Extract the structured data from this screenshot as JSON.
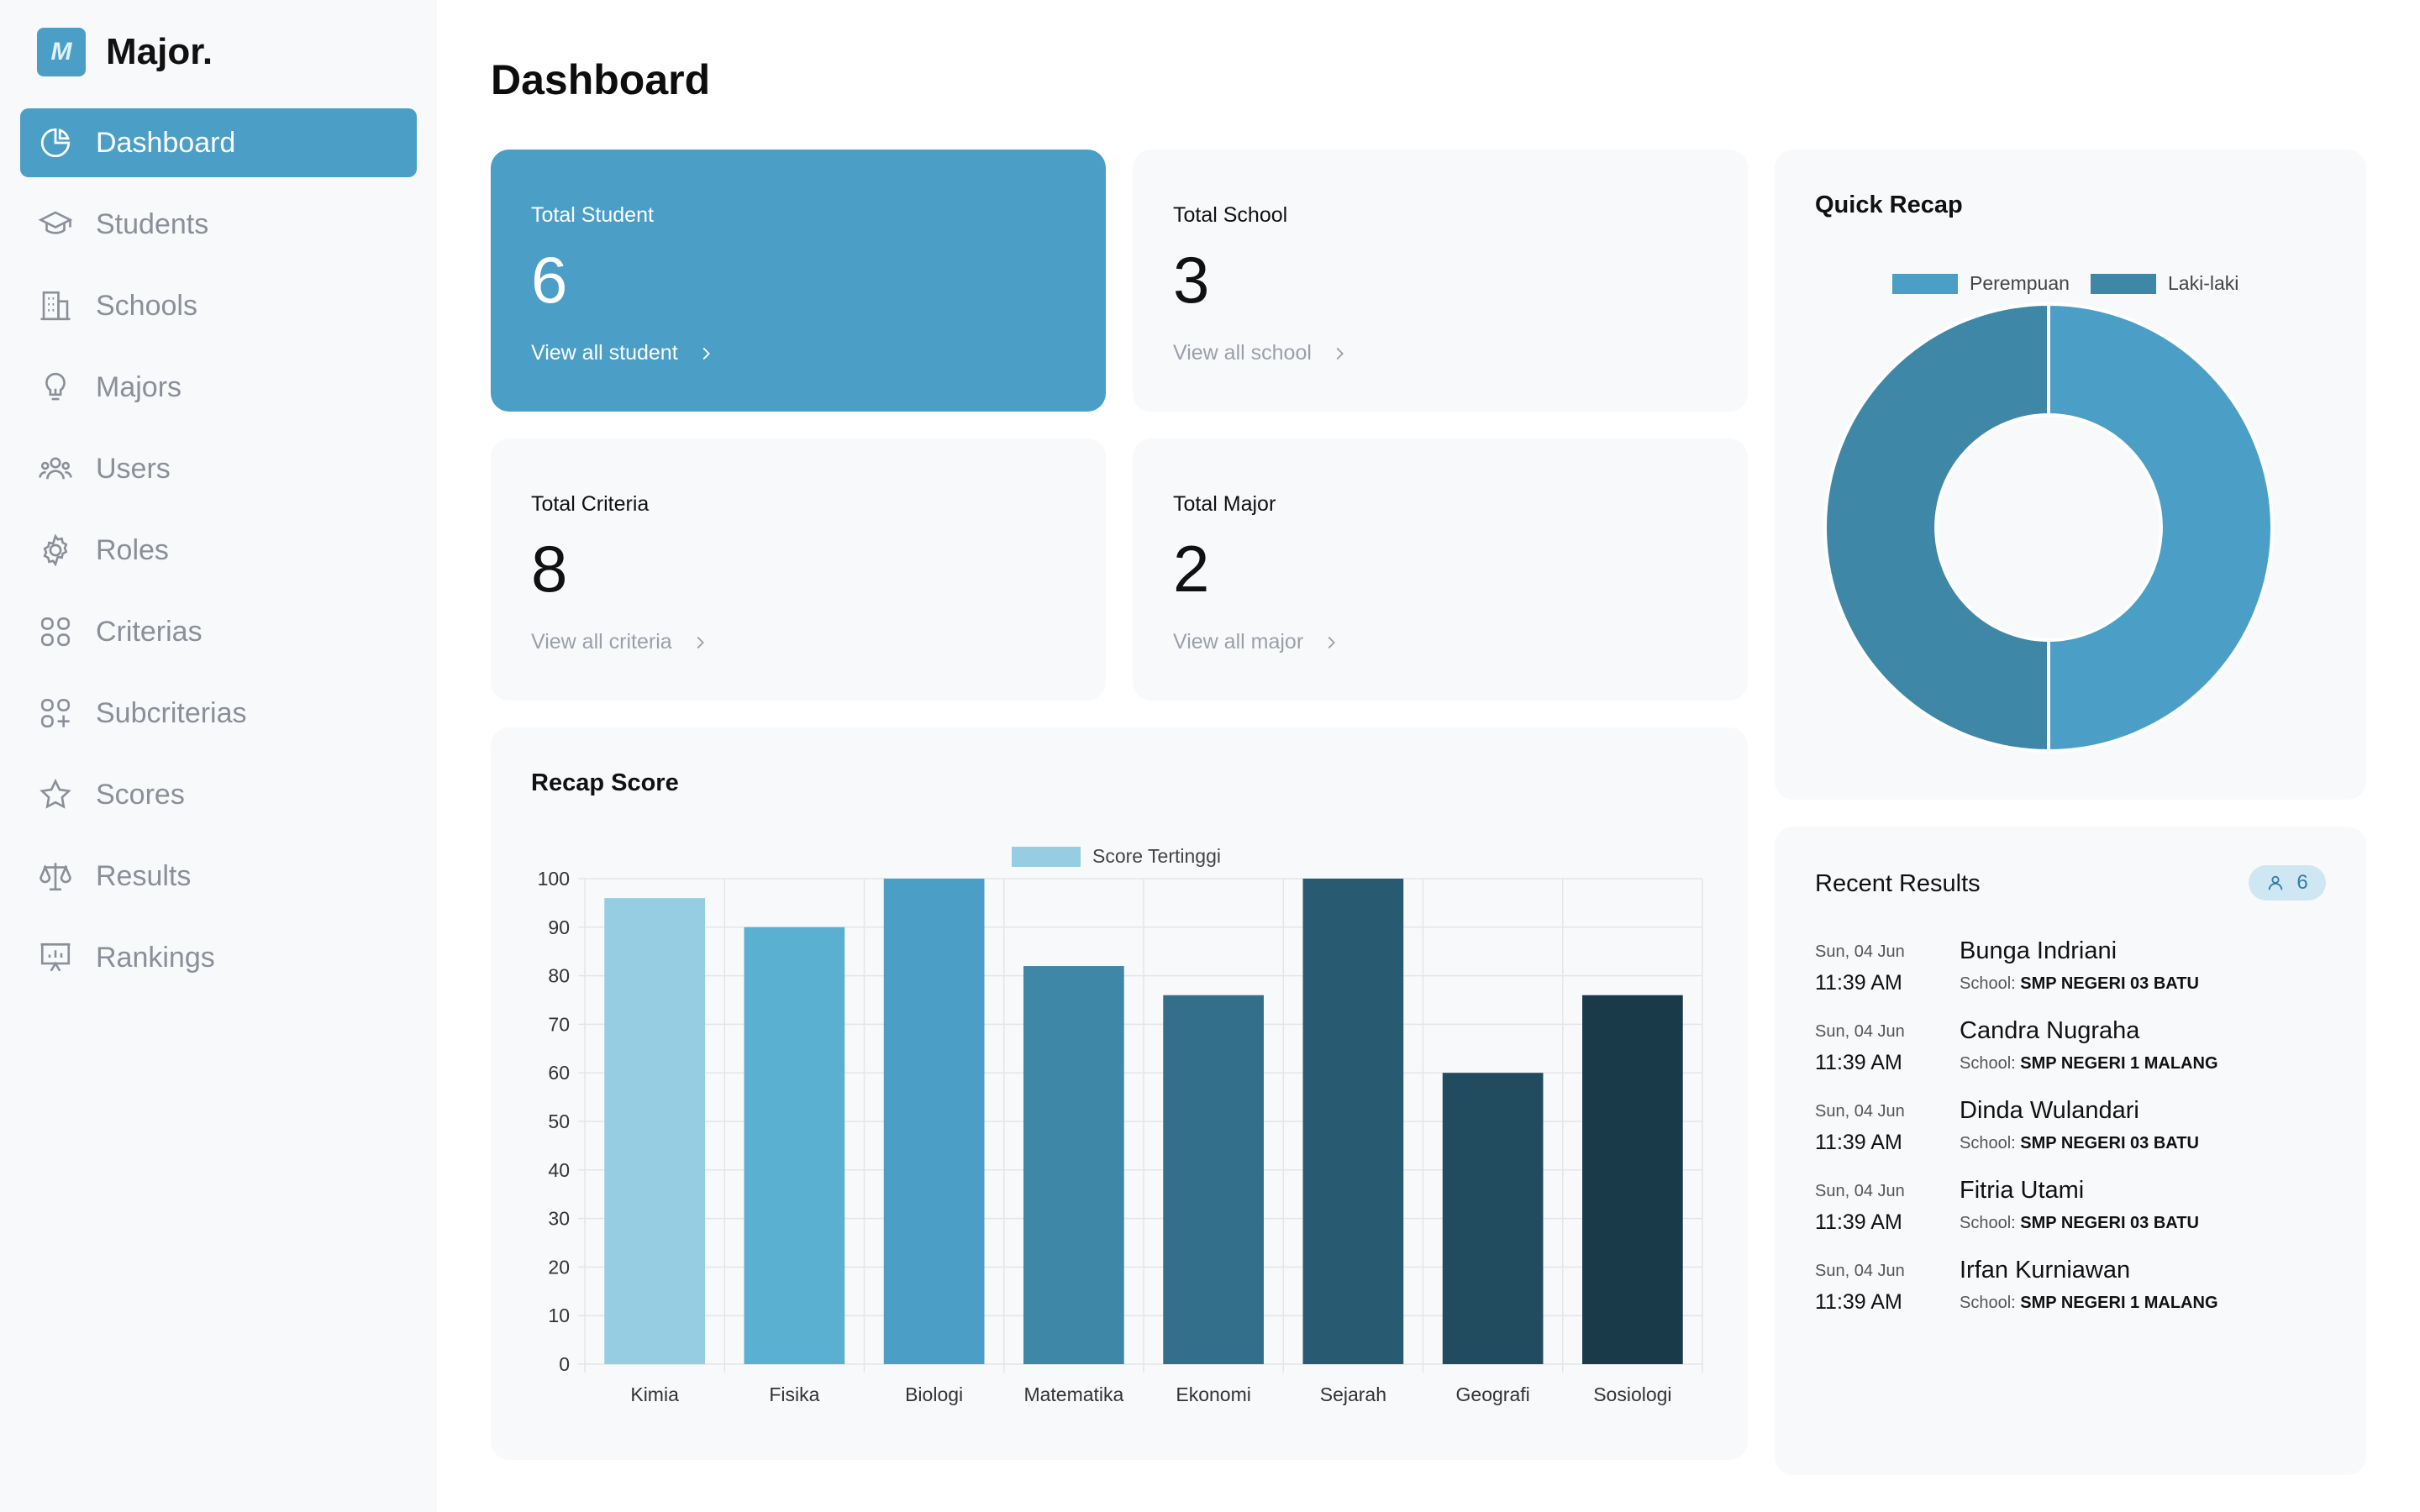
{
  "app": {
    "logo_letter": "M",
    "name": "Major."
  },
  "nav": [
    {
      "label": "Dashboard",
      "icon": "pie-chart-icon",
      "active": true
    },
    {
      "label": "Students",
      "icon": "graduation-cap-icon"
    },
    {
      "label": "Schools",
      "icon": "building-icon"
    },
    {
      "label": "Majors",
      "icon": "lightbulb-icon"
    },
    {
      "label": "Users",
      "icon": "users-icon"
    },
    {
      "label": "Roles",
      "icon": "gear-icon"
    },
    {
      "label": "Criterias",
      "icon": "grid-icon"
    },
    {
      "label": "Subcriterias",
      "icon": "grid-plus-icon"
    },
    {
      "label": "Scores",
      "icon": "star-icon"
    },
    {
      "label": "Results",
      "icon": "scale-icon"
    },
    {
      "label": "Rankings",
      "icon": "presentation-icon"
    }
  ],
  "page": {
    "title": "Dashboard"
  },
  "stats": {
    "student": {
      "label": "Total Student",
      "value": "6",
      "link": "View all student"
    },
    "school": {
      "label": "Total School",
      "value": "3",
      "link": "View all school"
    },
    "criteria": {
      "label": "Total Criteria",
      "value": "8",
      "link": "View all criteria"
    },
    "major": {
      "label": "Total Major",
      "value": "2",
      "link": "View all major"
    }
  },
  "recap_score": {
    "title": "Recap Score",
    "chart_data": {
      "type": "bar",
      "categories": [
        "Kimia",
        "Fisika",
        "Biologi",
        "Matematika",
        "Ekonomi",
        "Sejarah",
        "Geografi",
        "Sosiologi"
      ],
      "series": [
        {
          "name": "Score Tertinggi",
          "values": [
            96,
            90,
            100,
            82,
            76,
            100,
            60,
            76
          ]
        }
      ],
      "bar_colors": [
        "#96cde2",
        "#5ab0d1",
        "#4b9fc6",
        "#3f87a6",
        "#336f8a",
        "#285b72",
        "#214b5e",
        "#193a48"
      ],
      "legend_color": "#96cde2",
      "ylim": [
        0,
        100
      ],
      "yticks": [
        0,
        10,
        20,
        30,
        40,
        50,
        60,
        70,
        80,
        90,
        100
      ],
      "grid": true,
      "legend": "top-center"
    }
  },
  "quick_recap": {
    "title": "Quick Recap",
    "chart_data": {
      "type": "pie",
      "labels": [
        "Perempuan",
        "Laki-laki"
      ],
      "values": [
        3,
        3
      ],
      "colors": [
        "#4b9fc6",
        "#3f87a6"
      ],
      "legend": "top-center"
    }
  },
  "recent_results": {
    "title": "Recent Results",
    "count": "6",
    "school_prefix": "School:",
    "items": [
      {
        "date": "Sun, 04 Jun",
        "time": "11:39 AM",
        "name": "Bunga Indriani",
        "school": "SMP NEGERI 03 BATU"
      },
      {
        "date": "Sun, 04 Jun",
        "time": "11:39 AM",
        "name": "Candra Nugraha",
        "school": "SMP NEGERI 1 MALANG"
      },
      {
        "date": "Sun, 04 Jun",
        "time": "11:39 AM",
        "name": "Dinda Wulandari",
        "school": "SMP NEGERI 03 BATU"
      },
      {
        "date": "Sun, 04 Jun",
        "time": "11:39 AM",
        "name": "Fitria Utami",
        "school": "SMP NEGERI 03 BATU"
      },
      {
        "date": "Sun, 04 Jun",
        "time": "11:39 AM",
        "name": "Irfan Kurniawan",
        "school": "SMP NEGERI 1 MALANG"
      }
    ]
  }
}
